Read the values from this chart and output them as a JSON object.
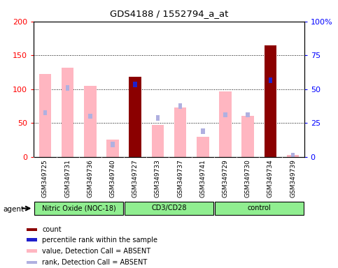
{
  "title": "GDS4188 / 1552794_a_at",
  "samples": [
    "GSM349725",
    "GSM349731",
    "GSM349736",
    "GSM349740",
    "GSM349727",
    "GSM349733",
    "GSM349737",
    "GSM349741",
    "GSM349729",
    "GSM349730",
    "GSM349734",
    "GSM349739"
  ],
  "group_defs": [
    {
      "name": "Nitric Oxide (NOC-18)",
      "start": 0,
      "end": 4
    },
    {
      "name": "CD3/CD28",
      "start": 4,
      "end": 8
    },
    {
      "name": "control",
      "start": 8,
      "end": 12
    }
  ],
  "value_bars": [
    122,
    132,
    105,
    25,
    118,
    47,
    73,
    30,
    97,
    60,
    165,
    3
  ],
  "rank_bars": [
    65,
    102,
    60,
    18,
    107,
    57,
    75,
    38,
    62,
    62,
    113,
    2
  ],
  "detection_absent": [
    true,
    true,
    true,
    true,
    false,
    true,
    true,
    true,
    true,
    true,
    false,
    true
  ],
  "ylim_left": [
    0,
    200
  ],
  "ylim_right": [
    0,
    100
  ],
  "yticks_left": [
    0,
    50,
    100,
    150,
    200
  ],
  "yticks_right": [
    0,
    25,
    50,
    75,
    100
  ],
  "ytick_labels_left": [
    "0",
    "50",
    "100",
    "150",
    "200"
  ],
  "ytick_labels_right": [
    "0",
    "25",
    "50",
    "75",
    "100%"
  ],
  "absent_value_color": "#FFB6C1",
  "absent_rank_color": "#B0B0E0",
  "present_count_color": "#8B0000",
  "present_rank_color": "#1F1FCC",
  "group_color": "#90EE90",
  "legend_items": [
    {
      "color": "#8B0000",
      "label": "count"
    },
    {
      "color": "#1F1FCC",
      "label": "percentile rank within the sample"
    },
    {
      "color": "#FFB6C1",
      "label": "value, Detection Call = ABSENT"
    },
    {
      "color": "#B0B0E0",
      "label": "rank, Detection Call = ABSENT"
    }
  ]
}
